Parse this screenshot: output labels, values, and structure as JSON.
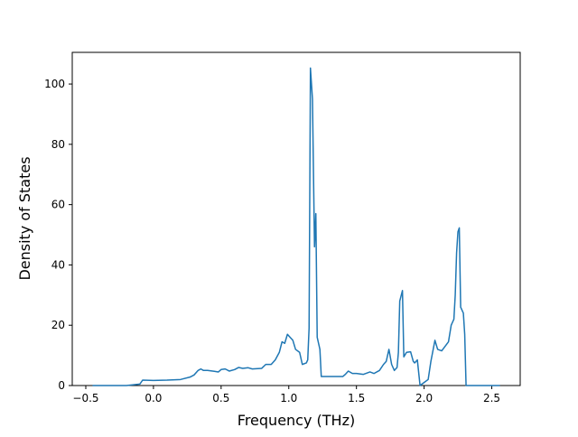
{
  "chart_data": {
    "type": "line",
    "xlabel": "Frequency (THz)",
    "ylabel": "Density of States",
    "x": [
      -0.45,
      -0.2,
      -0.1,
      -0.08,
      0.0,
      0.1,
      0.2,
      0.27,
      0.3,
      0.33,
      0.35,
      0.37,
      0.4,
      0.45,
      0.48,
      0.5,
      0.53,
      0.56,
      0.6,
      0.63,
      0.66,
      0.7,
      0.73,
      0.8,
      0.83,
      0.87,
      0.9,
      0.93,
      0.95,
      0.97,
      0.99,
      1.01,
      1.03,
      1.05,
      1.08,
      1.1,
      1.13,
      1.14,
      1.15,
      1.16,
      1.175,
      1.19,
      1.2,
      1.21,
      1.23,
      1.24,
      1.3,
      1.4,
      1.42,
      1.44,
      1.47,
      1.5,
      1.55,
      1.6,
      1.63,
      1.67,
      1.7,
      1.72,
      1.74,
      1.76,
      1.78,
      1.8,
      1.81,
      1.82,
      1.84,
      1.85,
      1.87,
      1.9,
      1.92,
      1.93,
      1.95,
      1.97,
      2.0,
      2.03,
      2.05,
      2.08,
      2.1,
      2.13,
      2.18,
      2.2,
      2.22,
      2.23,
      2.24,
      2.25,
      2.26,
      2.27,
      2.29,
      2.3,
      2.31,
      2.4,
      2.56
    ],
    "series": [
      {
        "name": "DOS",
        "color": "#1f77b4",
        "values": [
          0,
          0,
          0.5,
          1.8,
          1.7,
          1.8,
          2.0,
          2.8,
          3.5,
          5.0,
          5.5,
          5.0,
          5.0,
          4.7,
          4.5,
          5.3,
          5.5,
          4.8,
          5.3,
          6.0,
          5.7,
          5.9,
          5.5,
          5.7,
          7.0,
          7.0,
          8.5,
          11,
          14.5,
          14,
          17,
          16,
          15,
          12,
          11,
          7.0,
          7.5,
          8.5,
          19,
          105.3,
          95,
          46,
          57,
          16,
          12,
          3.0,
          3.0,
          3.0,
          3.8,
          4.8,
          4.0,
          4.0,
          3.7,
          4.5,
          4.0,
          5.0,
          7.0,
          8.0,
          12.0,
          7.0,
          5.0,
          6.0,
          11.0,
          28,
          31.5,
          9.5,
          11,
          11.2,
          8,
          7.5,
          8.5,
          0,
          1.0,
          2.0,
          8,
          15,
          12,
          11.5,
          14.5,
          20,
          22,
          30,
          44,
          51,
          52.3,
          26,
          24,
          17,
          0,
          0,
          0
        ]
      }
    ],
    "xlim": [
      -0.6,
      2.71
    ],
    "ylim": [
      0,
      110.5
    ],
    "xticks": [
      {
        "value": -0.5,
        "label": "−0.5"
      },
      {
        "value": 0.0,
        "label": "0.0"
      },
      {
        "value": 0.5,
        "label": "0.5"
      },
      {
        "value": 1.0,
        "label": "1.0"
      },
      {
        "value": 1.5,
        "label": "1.5"
      },
      {
        "value": 2.0,
        "label": "2.0"
      },
      {
        "value": 2.5,
        "label": "2.5"
      }
    ],
    "yticks": [
      0,
      20,
      40,
      60,
      80,
      100
    ]
  }
}
